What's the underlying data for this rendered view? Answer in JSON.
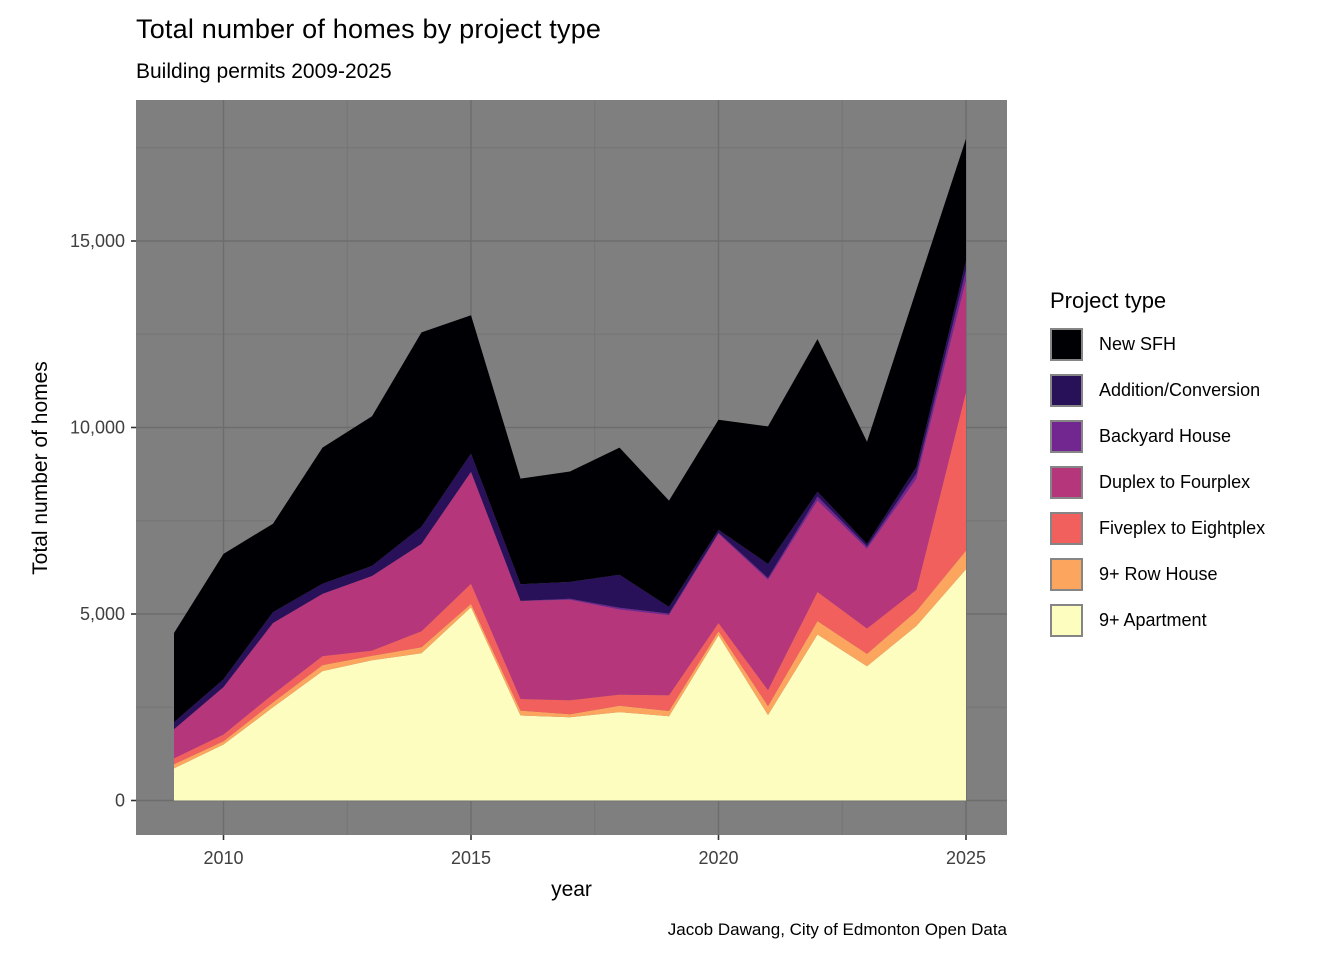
{
  "title": "Total number of homes by project type",
  "subtitle": "Building permits 2009-2025",
  "caption": "Jacob Dawang, City of Edmonton Open Data",
  "legend": {
    "title": "Project type",
    "items_top_to_bottom": [
      "New SFH",
      "Addition/Conversion",
      "Backyard House",
      "Duplex to Fourplex",
      "Fiveplex to Eightplex",
      "9+ Row House",
      "9+ Apartment"
    ]
  },
  "colors": {
    "panel_background": "#7f7f7f",
    "grid_major": "#6d6d6d",
    "grid_minor": "#757575",
    "tick_mark": "#333333",
    "tick_label": "#404040",
    "legend_key_border": "#858585",
    "page_background": "#ffffff"
  },
  "axes": {
    "x_tick_labels": [
      "2010",
      "2015",
      "2020",
      "2025"
    ],
    "x_tick_values": [
      2010,
      2015,
      2020,
      2025
    ],
    "y_tick_labels": [
      "0",
      "5,000",
      "10,000",
      "15,000"
    ],
    "y_tick_values": [
      0,
      5000,
      10000,
      15000
    ],
    "y_minor_values": [
      2500,
      7500,
      12500,
      17500
    ],
    "x_minor_values": [
      2012.5,
      2017.5,
      2022.5
    ]
  },
  "chart_data": {
    "type": "area",
    "stacked": true,
    "title": "Total number of homes by project type",
    "subtitle": "Building permits 2009-2025",
    "xlabel": "year",
    "ylabel": "Total number of homes",
    "legend_title": "Project type",
    "legend_position": "right",
    "grid": true,
    "xlim": [
      2009,
      2025
    ],
    "ylim": [
      0,
      18500
    ],
    "x": [
      2009,
      2010,
      2011,
      2012,
      2013,
      2014,
      2015,
      2016,
      2017,
      2018,
      2019,
      2020,
      2021,
      2022,
      2023,
      2024,
      2025
    ],
    "series_bottom_to_top": [
      {
        "name": "9+ Apartment",
        "color": "#fcfdbf",
        "values": [
          860,
          1500,
          2500,
          3470,
          3760,
          3950,
          5180,
          2280,
          2230,
          2370,
          2260,
          4430,
          2290,
          4450,
          3600,
          4680,
          6200
        ]
      },
      {
        "name": "9+ Row House",
        "color": "#fca55e",
        "values": [
          110,
          90,
          130,
          160,
          120,
          160,
          90,
          130,
          80,
          170,
          140,
          110,
          240,
          360,
          330,
          400,
          500
        ]
      },
      {
        "name": "Fiveplex to Eightplex",
        "color": "#f1605d",
        "values": [
          160,
          180,
          220,
          240,
          140,
          430,
          540,
          310,
          380,
          300,
          420,
          220,
          430,
          780,
          680,
          570,
          4250
        ]
      },
      {
        "name": "Duplex to Fourplex",
        "color": "#b5367a",
        "values": [
          780,
          1270,
          1910,
          1670,
          2000,
          2340,
          3000,
          2630,
          2690,
          2280,
          2150,
          2390,
          2960,
          2450,
          2140,
          2980,
          3000
        ]
      },
      {
        "name": "Backyard House",
        "color": "#71278f",
        "values": [
          0,
          0,
          0,
          0,
          0,
          0,
          0,
          0,
          30,
          50,
          40,
          30,
          45,
          110,
          60,
          140,
          270
        ]
      },
      {
        "name": "Addition/Conversion",
        "color": "#29115a",
        "values": [
          190,
          210,
          290,
          270,
          270,
          460,
          490,
          450,
          450,
          880,
          180,
          80,
          375,
          130,
          70,
          180,
          240
        ]
      },
      {
        "name": "New SFH",
        "color": "#000004",
        "values": [
          2390,
          3360,
          2370,
          3650,
          4010,
          5210,
          3710,
          2830,
          2960,
          3410,
          2850,
          2950,
          3690,
          4090,
          2740,
          4750,
          3280
        ]
      }
    ],
    "totals_by_year": [
      4490,
      6610,
      7420,
      9460,
      10300,
      12550,
      13010,
      8630,
      8820,
      9460,
      8040,
      10210,
      10030,
      12370,
      9620,
      13700,
      17740
    ]
  }
}
